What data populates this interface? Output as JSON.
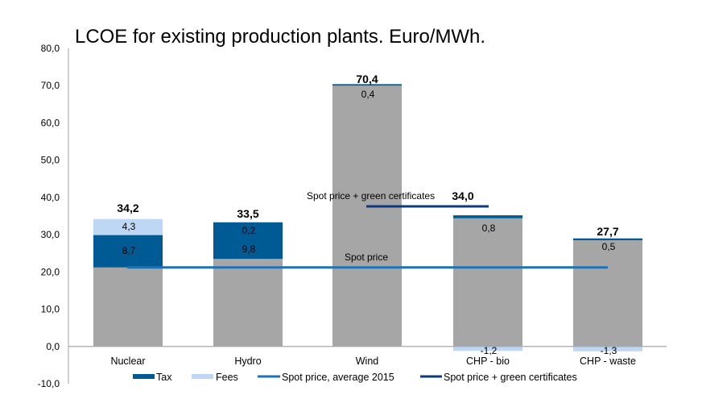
{
  "chart_data": {
    "type": "bar",
    "stacked": true,
    "title": "LCOE for existing production plants. Euro/MWh.",
    "xlabel": "",
    "ylabel": "",
    "ylim": [
      -10,
      80
    ],
    "grid": false,
    "yticks": [
      {
        "value": 80,
        "label": "80,0"
      },
      {
        "value": 70,
        "label": "70,0"
      },
      {
        "value": 60,
        "label": "60,0"
      },
      {
        "value": 50,
        "label": "50,0"
      },
      {
        "value": 40,
        "label": "40,0"
      },
      {
        "value": 30,
        "label": "30,0"
      },
      {
        "value": 20,
        "label": "20,0"
      },
      {
        "value": 10,
        "label": "10,0"
      },
      {
        "value": 0,
        "label": "0,0"
      },
      {
        "value": -10,
        "label": "-10,0"
      }
    ],
    "categories": [
      "Nuclear",
      "Hydro",
      "Wind",
      "CHP - bio",
      "CHP - waste"
    ],
    "series": [
      {
        "name": "",
        "color": "#a6a6a6",
        "values": [
          21.2,
          23.5,
          70.0,
          34.4,
          28.5
        ],
        "labels": [
          null,
          null,
          null,
          null,
          null
        ],
        "in_legend": false
      },
      {
        "name": "Tax",
        "color": "#005b94",
        "values": [
          8.7,
          9.8,
          0.4,
          0.8,
          0.5
        ],
        "labels": [
          "8,7",
          "9,8",
          "0,4",
          "0,8",
          "0,5"
        ],
        "in_legend": true
      },
      {
        "name": "Fees",
        "color": "#bdd7f5",
        "values": [
          4.3,
          0.2,
          0.0,
          -1.2,
          -1.3
        ],
        "labels": [
          "4,3",
          "0,2",
          null,
          "-1,2",
          "-1,3"
        ],
        "in_legend": true
      }
    ],
    "totals": {
      "values": [
        34.2,
        33.5,
        70.4,
        34.0,
        27.7
      ],
      "labels": [
        "34,2",
        "33,5",
        "70,4",
        "34,0",
        "27,7"
      ]
    },
    "lines": [
      {
        "name": "Spot price, average 2015",
        "annotation": "Spot price",
        "value": 21.2,
        "color": "#1f72b8",
        "from_category": "Nuclear",
        "to_category": "CHP - waste"
      },
      {
        "name": "Spot price + green certificates",
        "annotation": "Spot price + green certificates",
        "value": 37.6,
        "color": "#0d3b7a",
        "from_category": "Wind",
        "to_category": "CHP - bio"
      }
    ],
    "legend": {
      "position": "bottom",
      "items": [
        {
          "label": "Tax",
          "kind": "box",
          "color": "#005b94"
        },
        {
          "label": "Fees",
          "kind": "box",
          "color": "#bdd7f5"
        },
        {
          "label": "Spot price, average 2015",
          "kind": "line",
          "color": "#1f72b8"
        },
        {
          "label": "Spot price + green certificates",
          "kind": "line",
          "color": "#0d3b7a"
        }
      ]
    }
  }
}
